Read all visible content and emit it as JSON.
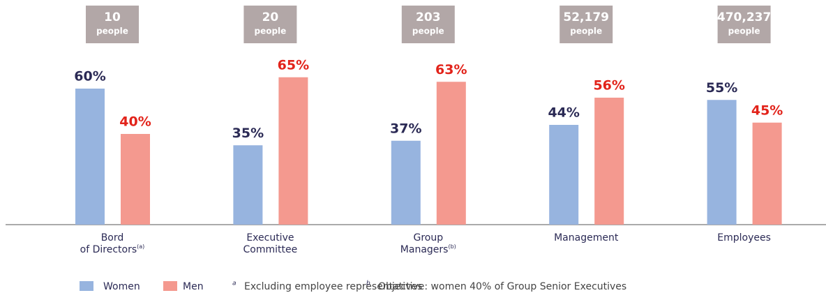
{
  "chart_data": {
    "type": "bar",
    "categories": [
      [
        "Bord",
        "of Directors"
      ],
      [
        "Executive",
        "Committee"
      ],
      [
        "Group",
        "Managers"
      ],
      [
        "Management"
      ],
      [
        "Employees"
      ]
    ],
    "category_notes": [
      "(a)",
      null,
      "(b)",
      null,
      null
    ],
    "headcounts": [
      "10",
      "20",
      "203",
      "52,179",
      "470,237"
    ],
    "headcount_unit": "people",
    "series": [
      {
        "name": "Women",
        "color": "#97b4df",
        "label_color": "#2b2a55",
        "values": [
          60,
          35,
          37,
          44,
          55
        ],
        "value_labels": [
          "60%",
          "35%",
          "37%",
          "44%",
          "55%"
        ]
      },
      {
        "name": "Men",
        "color": "#f4998f",
        "label_color": "#e2231a",
        "values": [
          40,
          65,
          63,
          56,
          45
        ],
        "value_labels": [
          "40%",
          "65%",
          "63%",
          "56%",
          "45%"
        ]
      }
    ],
    "ylim": [
      0,
      100
    ],
    "footnotes": [
      {
        "mark": "a",
        "text": "Excluding employee representatives"
      },
      {
        "mark": "b",
        "text": "Objective: women 40% of Group Senior Executives"
      }
    ]
  }
}
